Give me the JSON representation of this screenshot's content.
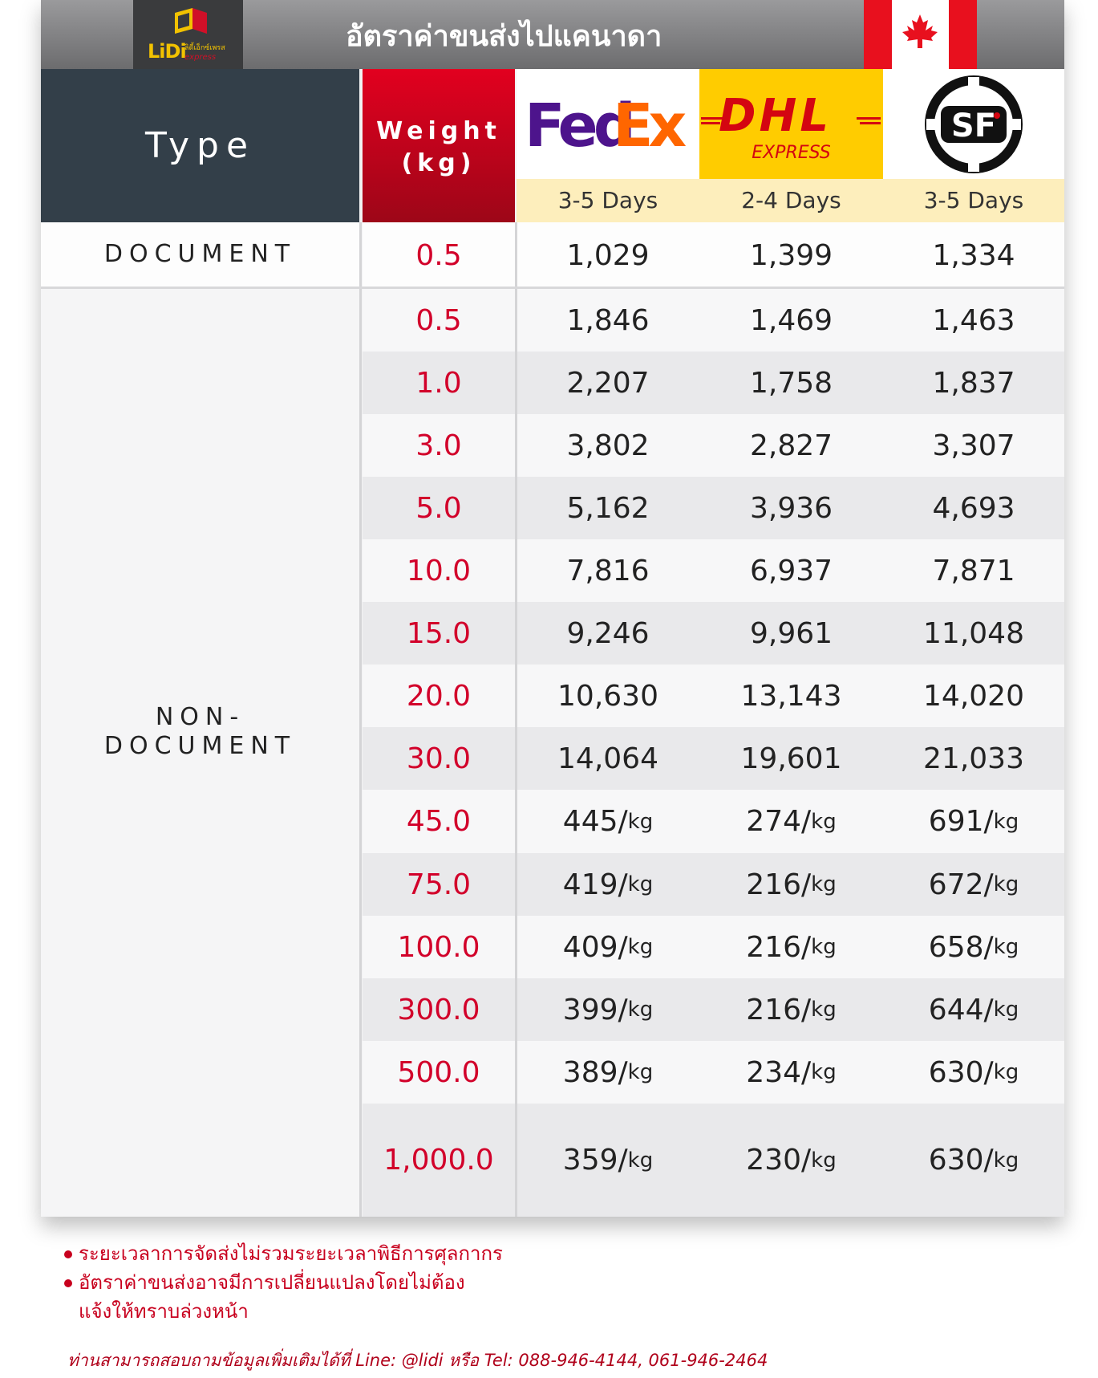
{
  "title": "อัตราค่าขนส่งไปแคนาดา",
  "logo": {
    "text": "LiDi",
    "sub_thai": "ลิดี้เอ็กซ์เพรส",
    "sub_en": "express"
  },
  "header": {
    "type_label": "Type",
    "weight_line1": "Weight",
    "weight_line2": "(kg)"
  },
  "carriers": [
    {
      "logo_text_a": "Fed",
      "logo_text_b": "Ex",
      "days": "3-5 Days"
    },
    {
      "logo_text_a": "DHL",
      "logo_text_b": "EXPRESS",
      "days": "2-4 Days"
    },
    {
      "logo_text_a": "SF",
      "logo_text_b": "",
      "days": "3-5 Days"
    }
  ],
  "colors": {
    "accent_red": "#d2002a",
    "fedex_purple": "#4d148c",
    "fedex_orange": "#ff6600",
    "dhl_yellow": "#ffcc00",
    "dhl_red": "#d40511",
    "type_header": "#333f49"
  },
  "sections": {
    "document": "DOCUMENT",
    "non_document_line1": "NON-",
    "non_document_line2": "DOCUMENT"
  },
  "rows": [
    {
      "weight": "0.5",
      "fedex": "1,029",
      "dhl": "1,399",
      "sf": "1,334",
      "unit": ""
    },
    {
      "weight": "0.5",
      "fedex": "1,846",
      "dhl": "1,469",
      "sf": "1,463",
      "unit": ""
    },
    {
      "weight": "1.0",
      "fedex": "2,207",
      "dhl": "1,758",
      "sf": "1,837",
      "unit": ""
    },
    {
      "weight": "3.0",
      "fedex": "3,802",
      "dhl": "2,827",
      "sf": "3,307",
      "unit": ""
    },
    {
      "weight": "5.0",
      "fedex": "5,162",
      "dhl": "3,936",
      "sf": "4,693",
      "unit": ""
    },
    {
      "weight": "10.0",
      "fedex": "7,816",
      "dhl": "6,937",
      "sf": "7,871",
      "unit": ""
    },
    {
      "weight": "15.0",
      "fedex": "9,246",
      "dhl": "9,961",
      "sf": "11,048",
      "unit": ""
    },
    {
      "weight": "20.0",
      "fedex": "10,630",
      "dhl": "13,143",
      "sf": "14,020",
      "unit": ""
    },
    {
      "weight": "30.0",
      "fedex": "14,064",
      "dhl": "19,601",
      "sf": "21,033",
      "unit": ""
    },
    {
      "weight": "45.0",
      "fedex": "445/",
      "dhl": "274/",
      "sf": "691/",
      "unit": "kg"
    },
    {
      "weight": "75.0",
      "fedex": "419/",
      "dhl": "216/",
      "sf": "672/",
      "unit": "kg"
    },
    {
      "weight": "100.0",
      "fedex": "409/",
      "dhl": "216/",
      "sf": "658/",
      "unit": "kg"
    },
    {
      "weight": "300.0",
      "fedex": "399/",
      "dhl": "216/",
      "sf": "644/",
      "unit": "kg"
    },
    {
      "weight": "500.0",
      "fedex": "389/",
      "dhl": "234/",
      "sf": "630/",
      "unit": "kg"
    },
    {
      "weight": "1,000.0",
      "fedex": "359/",
      "dhl": "230/",
      "sf": "630/",
      "unit": "kg"
    }
  ],
  "notes": {
    "note1": "ระยะเวลาการจัดส่งไม่รวมระยะเวลาพิธีการศุลกากร",
    "note2_line1": "อัตราค่าขนส่งอาจมีการเปลี่ยนแปลงโดยไม่ต้อง",
    "note2_line2": "แจ้งให้ทราบล่วงหน้า",
    "contact": "ท่านสามารถสอบถามข้อมูลเพิ่มเติมได้ที่ Line: @lidi หรือ Tel: 088-946-4144, 061-946-2464"
  }
}
